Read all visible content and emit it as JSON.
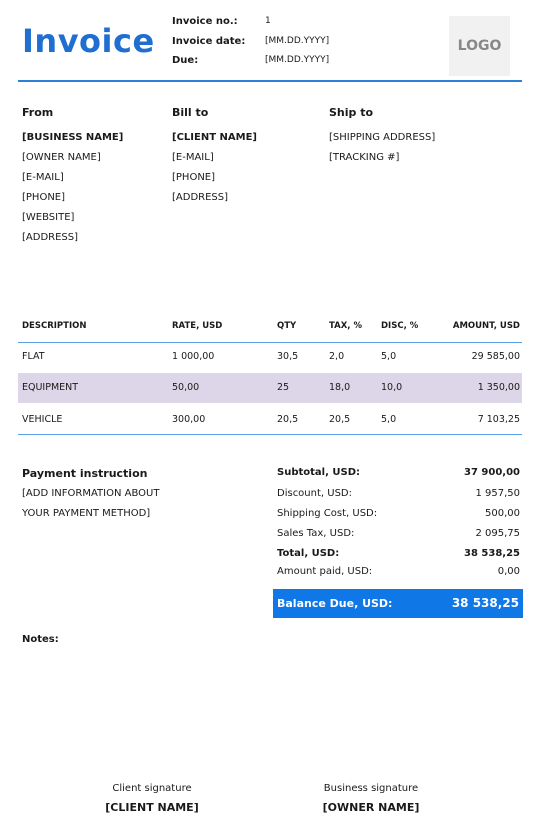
{
  "header": {
    "title": "Invoice",
    "invoice_no_label": "Invoice no.:",
    "invoice_no_value": "1",
    "invoice_date_label": "Invoice date:",
    "invoice_date_value": "[MM.DD.YYYY]",
    "due_label": "Due:",
    "due_value": "[MM.DD.YYYY]",
    "logo_text": "LOGO"
  },
  "from": {
    "heading": "From",
    "lines": [
      "[BUSINESS NAME]",
      "[OWNER NAME]",
      "[E-MAIL]",
      "[PHONE]",
      "[WEBSITE]",
      "[ADDRESS]"
    ]
  },
  "bill_to": {
    "heading": "Bill to",
    "lines": [
      "[CLIENT NAME]",
      "[E-MAIL]",
      "[PHONE]",
      "[ADDRESS]"
    ]
  },
  "ship_to": {
    "heading": "Ship to",
    "lines": [
      "[SHIPPING ADDRESS]",
      "[TRACKING #]"
    ]
  },
  "items": {
    "headers": [
      "DESCRIPTION",
      "RATE, USD",
      "QTY",
      "TAX, %",
      "DISC, %",
      "AMOUNT, USD"
    ],
    "rows": [
      [
        "FLAT",
        "1 000,00",
        "30,5",
        "2,0",
        "5,0",
        "29 585,00"
      ],
      [
        "EQUIPMENT",
        "50,00",
        "25",
        "18,0",
        "10,0",
        "1 350,00"
      ],
      [
        "VEHICLE",
        "300,00",
        "20,5",
        "20,5",
        "5,0",
        "7 103,25"
      ]
    ],
    "highlight_color": "#ddd5e8"
  },
  "payment": {
    "heading": "Payment instruction",
    "lines": [
      "[ADD INFORMATION ABOUT",
      "YOUR PAYMENT METHOD]"
    ]
  },
  "totals": {
    "subtotal_label": "Subtotal, USD:",
    "subtotal_value": "37 900,00",
    "discount_label": "Discount, USD:",
    "discount_value": "1 957,50",
    "shipping_label": "Shipping Cost, USD:",
    "shipping_value": "500,00",
    "tax_label": "Sales Tax, USD:",
    "tax_value": "2 095,75",
    "total_label": "Total, USD:",
    "total_value": "38 538,25",
    "paid_label": "Amount paid, USD:",
    "paid_value": "0,00",
    "balance_label": "Balance Due, USD:",
    "balance_value": "38 538,25",
    "balance_color": "#0f77e6"
  },
  "notes": {
    "label": "Notes:"
  },
  "signatures": {
    "client_caption": "Client signature",
    "client_name": "[CLIENT NAME]",
    "business_caption": "Business signature",
    "business_name": "[OWNER NAME]"
  },
  "colors": {
    "accent": "#1f6fd1",
    "rule": "#2b7fd6"
  }
}
